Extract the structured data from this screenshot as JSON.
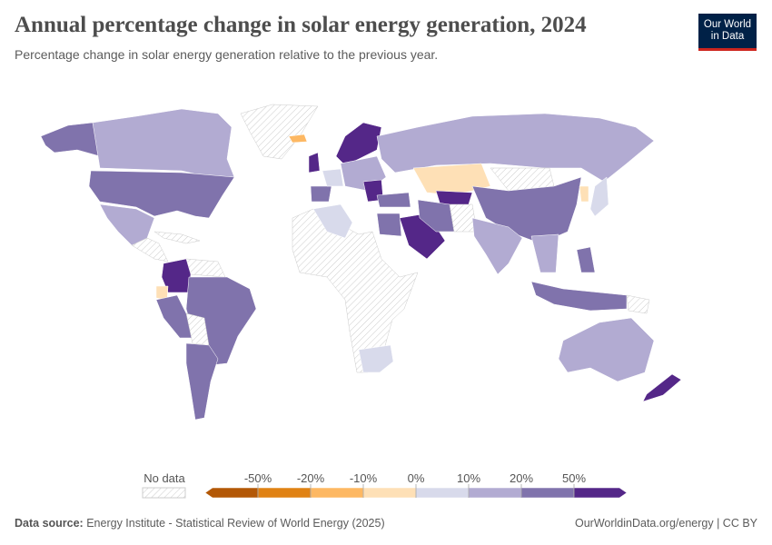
{
  "header": {
    "title": "Annual percentage change in solar energy generation, 2024",
    "subtitle": "Percentage change in solar energy generation relative to the previous year.",
    "logo": "Our World in Data"
  },
  "legend": {
    "no_data_label": "No data",
    "ticks": [
      "-50%",
      "-20%",
      "-10%",
      "0%",
      "10%",
      "20%",
      "50%"
    ],
    "bin_colors": [
      "#b35806",
      "#e08214",
      "#fdb863",
      "#fee0b6",
      "#d8daeb",
      "#b2abd2",
      "#8073ac",
      "#542788"
    ]
  },
  "footer": {
    "source_label": "Data source:",
    "source": "Energy Institute - Statistical Review of World Energy (2025)",
    "credit": "OurWorldinData.org/energy | CC BY"
  }
}
